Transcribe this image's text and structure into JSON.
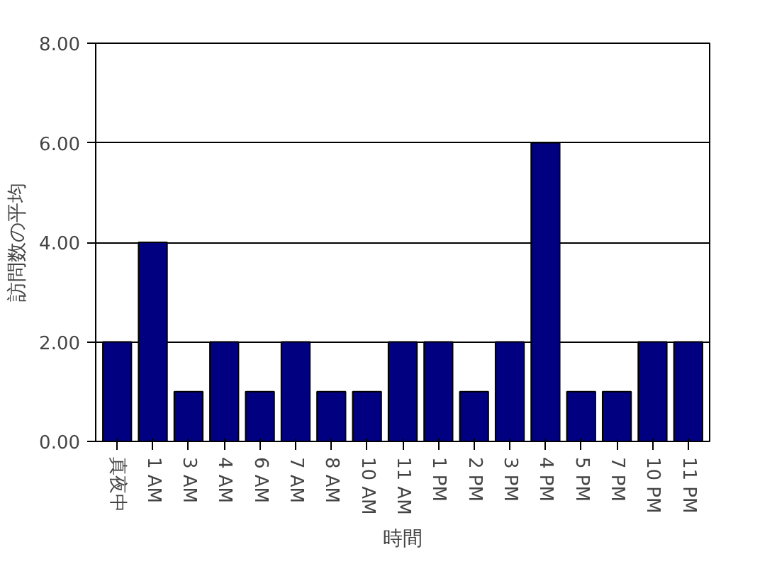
{
  "chart_data": {
    "type": "bar",
    "xlabel": "時間",
    "ylabel": "訪問数の平均",
    "categories": [
      "真夜中",
      "1 AM",
      "3 AM",
      "4 AM",
      "6 AM",
      "7 AM",
      "8 AM",
      "10 AM",
      "11 AM",
      "1 PM",
      "2 PM",
      "3 PM",
      "4 PM",
      "5 PM",
      "7 PM",
      "10 PM",
      "11 PM"
    ],
    "values": [
      2,
      4,
      1,
      2,
      1,
      2,
      1,
      1,
      2,
      2,
      1,
      2,
      6,
      1,
      1,
      2,
      2
    ],
    "color": "#000080",
    "ylim": [
      0,
      8
    ],
    "yticks": [
      {
        "value": 0,
        "label": "0.00"
      },
      {
        "value": 2,
        "label": "2.00"
      },
      {
        "value": 4,
        "label": "4.00"
      },
      {
        "value": 6,
        "label": "6.00"
      },
      {
        "value": 8,
        "label": "8.00"
      }
    ],
    "grid": "y"
  }
}
